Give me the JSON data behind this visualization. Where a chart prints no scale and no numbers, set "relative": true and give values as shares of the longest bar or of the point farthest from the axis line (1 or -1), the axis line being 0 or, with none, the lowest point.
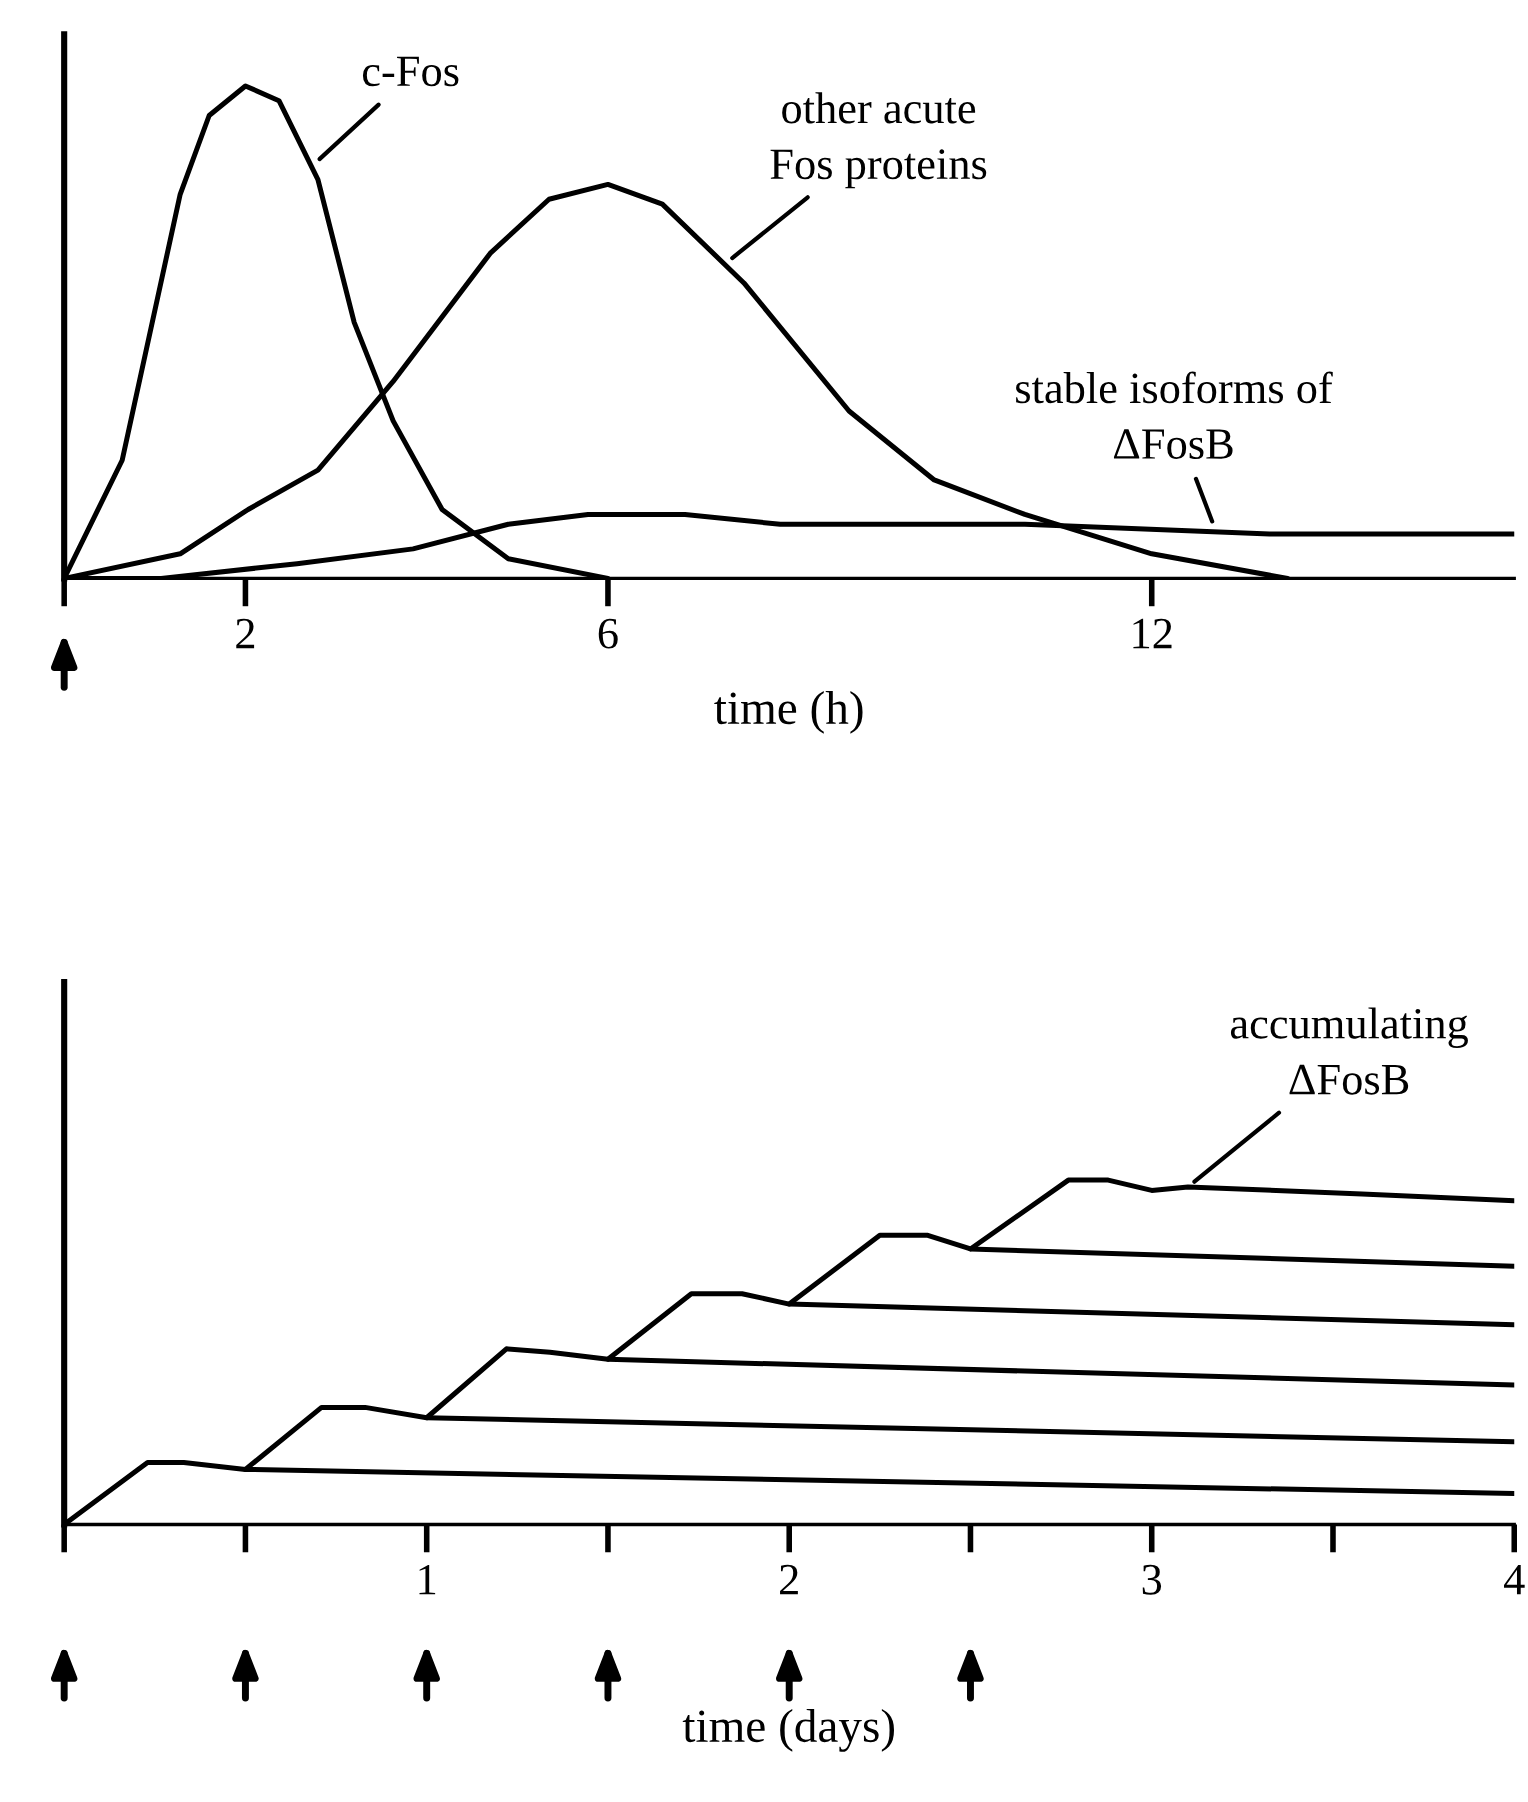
{
  "chart_data": [
    {
      "type": "line",
      "relative": true,
      "xlabel": "time (h)",
      "xlim": [
        0,
        16
      ],
      "xticks": [
        {
          "value": 0,
          "label": null
        },
        2,
        6,
        12
      ],
      "tick_labels": "x",
      "grid": false,
      "series": [
        {
          "color": "#000000",
          "x": [
            0,
            0.64,
            1.28,
            1.6,
            2,
            2.37,
            2.8,
            3.2,
            3.63,
            4.17,
            4.9,
            6
          ],
          "values": [
            0,
            0.24,
            0.78,
            0.94,
            1,
            0.97,
            0.81,
            0.52,
            0.32,
            0.14,
            0.04,
            0
          ]
        },
        {
          "color": "#000000",
          "x": [
            0,
            1.28,
            2.03,
            2.8,
            3.63,
            4.7,
            5.35,
            6,
            6.6,
            7.5,
            8.66,
            9.6,
            10.6,
            12,
            13.5
          ],
          "values": [
            0,
            0.05,
            0.14,
            0.22,
            0.4,
            0.66,
            0.77,
            0.8,
            0.76,
            0.6,
            0.34,
            0.2,
            0.13,
            0.05,
            0
          ]
        },
        {
          "color": "#000000",
          "x": [
            0,
            1.07,
            2.57,
            3.85,
            4.9,
            5.78,
            6.85,
            7.9,
            10.6,
            13.3,
            16
          ],
          "values": [
            0,
            0,
            0.03,
            0.06,
            0.11,
            0.13,
            0.13,
            0.11,
            0.11,
            0.09,
            0.09
          ]
        }
      ],
      "annotations": [
        {
          "text": "c-Fos",
          "x": 2.75,
          "y": 0.84
        },
        {
          "text": "other acute\nFos proteins",
          "x": 7.3,
          "y": 0.64
        },
        {
          "text": "stable isoforms of\nΔFosB",
          "x": 12.7,
          "y": 0.1
        }
      ]
    },
    {
      "type": "line",
      "relative": true,
      "xlabel": "time (days)",
      "xlim": [
        0,
        4
      ],
      "xticks": [
        {
          "value": 0,
          "label": null
        },
        {
          "value": 0.5,
          "label": null
        },
        1,
        {
          "value": 1.5,
          "label": null
        },
        2,
        {
          "value": 2.5,
          "label": null
        },
        3,
        {
          "value": 3.5,
          "label": null
        },
        4
      ],
      "tick_labels": "x",
      "grid": false,
      "series": [
        {
          "color": "#000000",
          "x": [
            0,
            0.23,
            0.33,
            0.5,
            0.71,
            0.83,
            1.0,
            1.22,
            1.34,
            1.5,
            1.73,
            1.87,
            2.0,
            2.25,
            2.38,
            2.5,
            2.77,
            2.88,
            3.0,
            3.1,
            3.58,
            4
          ],
          "values": [
            0,
            0.18,
            0.18,
            0.16,
            0.34,
            0.34,
            0.31,
            0.51,
            0.5,
            0.48,
            0.67,
            0.67,
            0.64,
            0.84,
            0.84,
            0.8,
            1.0,
            1.0,
            0.97,
            0.98,
            0.96,
            0.94
          ]
        },
        {
          "color": "#000000",
          "x": [
            0.5,
            4
          ],
          "values": [
            0.16,
            0.09
          ]
        },
        {
          "color": "#000000",
          "x": [
            1,
            4
          ],
          "values": [
            0.31,
            0.24
          ]
        },
        {
          "color": "#000000",
          "x": [
            1.5,
            4
          ],
          "values": [
            0.48,
            0.405
          ]
        },
        {
          "color": "#000000",
          "x": [
            2,
            4
          ],
          "values": [
            0.64,
            0.58
          ]
        },
        {
          "color": "#000000",
          "x": [
            2.5,
            4
          ],
          "values": [
            0.8,
            0.75
          ]
        }
      ],
      "annotations": [
        {
          "text": "accumulating\nΔFosB",
          "x": 3.1,
          "y": 0.98
        }
      ]
    }
  ]
}
